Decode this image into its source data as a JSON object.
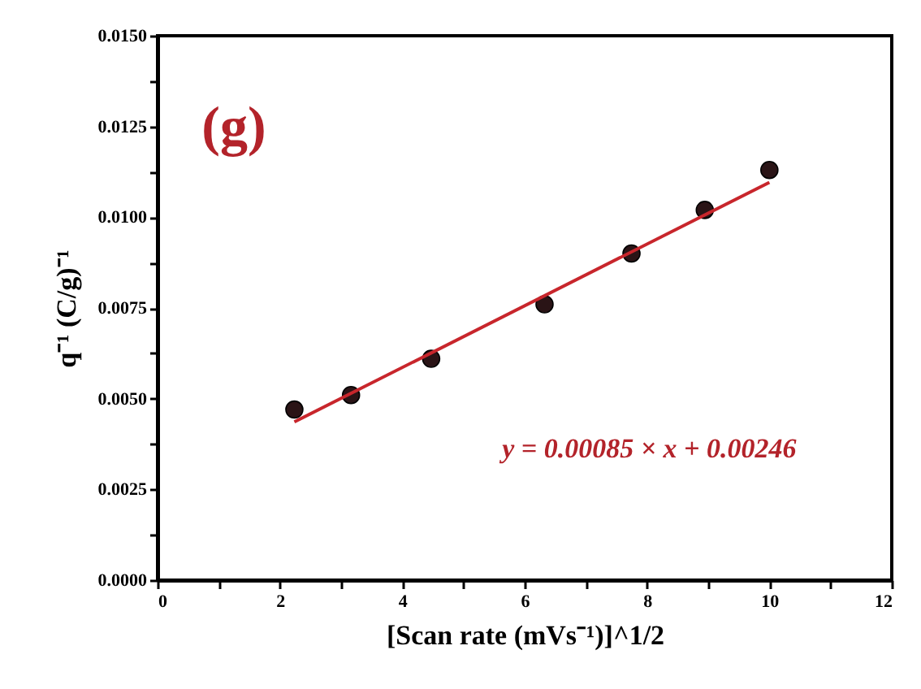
{
  "chart_data": {
    "type": "scatter",
    "xlabel": "[Scan rate (mVs⁻¹)]^1/2",
    "ylabel": "q⁻¹ (C/g)⁻¹",
    "annotations": [
      "(g)",
      "y = 0.00085 × x + 0.00246"
    ],
    "x": [
      2.236,
      3.162,
      4.472,
      6.325,
      7.746,
      8.944,
      10
    ],
    "series": [
      {
        "color": "#2a1416",
        "values": [
          0.0047,
          0.0051,
          0.0061,
          0.0076,
          0.009,
          0.0102,
          0.0113
        ]
      },
      {
        "type": "line",
        "marker": "none",
        "color": "#c8262c",
        "x": [
          2.236,
          10
        ],
        "values": [
          0.00436,
          0.01096
        ]
      }
    ],
    "marker": "circle",
    "line_style": "solid",
    "grid": false,
    "xlim": [
      0,
      12
    ],
    "ylim": [
      0,
      0.015
    ],
    "xticks": [
      0,
      {
        "value": 1,
        "label": null
      },
      2,
      {
        "value": 3,
        "label": null
      },
      4,
      {
        "value": 5,
        "label": null
      },
      6,
      {
        "value": 7,
        "label": null
      },
      8,
      {
        "value": 9,
        "label": null
      },
      10,
      {
        "value": 11,
        "label": null
      },
      12
    ],
    "yticks": [
      {
        "value": 0,
        "label": "0.0000"
      },
      {
        "value": 0.00125,
        "label": null
      },
      {
        "value": 0.0025,
        "label": "0.0025"
      },
      {
        "value": 0.00375,
        "label": null
      },
      {
        "value": 0.005,
        "label": "0.0050"
      },
      {
        "value": 0.00625,
        "label": null
      },
      {
        "value": 0.0075,
        "label": "0.0075"
      },
      {
        "value": 0.00875,
        "label": null
      },
      {
        "value": 0.01,
        "label": "0.0100"
      },
      {
        "value": 0.01125,
        "label": null
      },
      {
        "value": 0.0125,
        "label": "0.0125"
      },
      {
        "value": 0.01375,
        "label": null
      },
      {
        "value": 0.015,
        "label": "0.0150"
      }
    ]
  }
}
